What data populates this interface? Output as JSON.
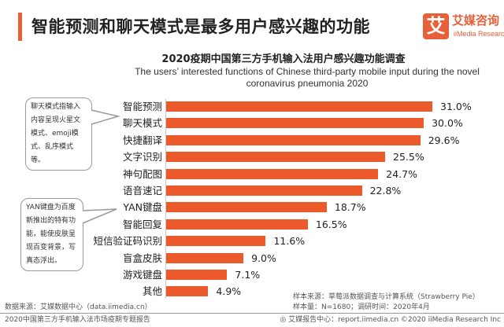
{
  "header": {
    "title": "智能预测和聊天模式是最多用户感兴趣的功能",
    "logo_mark": "艾",
    "logo_cn": "艾媒咨询",
    "logo_en": "iiMedia Research"
  },
  "notes": [
    "聊天模式指输入内容呈现火星文模式、emoji模式、乱序模式等。",
    "YAN键盘为百度新推出的特有功能，能使皮肤呈现百变背景，写真态浮出。"
  ],
  "chart_data": {
    "type": "bar",
    "orientation": "horizontal",
    "title": "2020疫期中国第三方手机输入法用户感兴趣功能调查",
    "subtitle": "The users’ interested functions of Chinese third-party mobile input during  the novel coronavirus pneumonia 2020",
    "categories": [
      "智能预测",
      "聊天模式",
      "快捷翻译",
      "文字识别",
      "神句配图",
      "语音速记",
      "YAN键盘",
      "智能回复",
      "短信验证码识别",
      "盲盒皮肤",
      "游戏键盘",
      "其他"
    ],
    "values": [
      31.0,
      30.0,
      29.6,
      25.5,
      24.7,
      22.8,
      18.7,
      16.5,
      11.6,
      9.0,
      7.1,
      4.9
    ],
    "labels": [
      "31.0%",
      "30.0%",
      "29.6%",
      "25.5%",
      "24.7%",
      "22.8%",
      "18.7%",
      "16.5%",
      "11.6%",
      "9.0%",
      "7.1%",
      "4.9%"
    ],
    "unit": "%",
    "bar_color": "#ec5a2b",
    "xlim": [
      0,
      31
    ]
  },
  "footer": {
    "source": "数据来源：艾媒数据中心（data.iimedia.cn）",
    "sample_source": "样本来源：草莓派数据调查与计算系统（Strawberry Pie）",
    "sample_size": "样本量：N=1680；调研时间：2020年4月",
    "report": "2020中国第三方手机输入法市场疫期专题报告",
    "report_center": "艾媒报告中心：report.iimedia.cn  ©2020  iiMedia Research Inc"
  }
}
